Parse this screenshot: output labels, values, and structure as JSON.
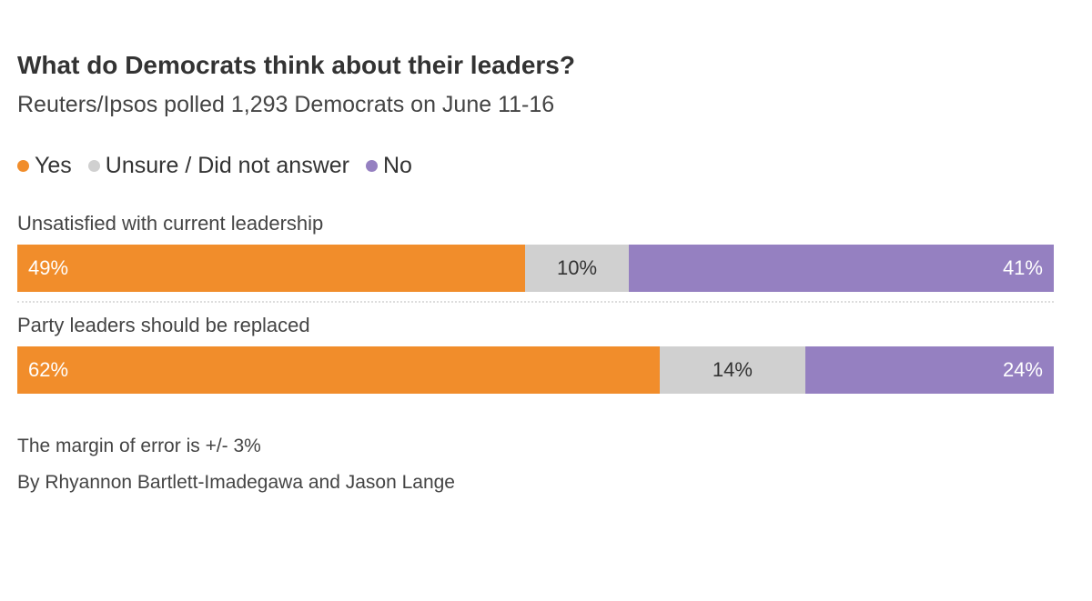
{
  "title": "What do Democrats think about their leaders?",
  "subtitle": "Reuters/Ipsos polled 1,293 Democrats on June 11-16",
  "legend": [
    {
      "label": "Yes",
      "color": "#F18D2B"
    },
    {
      "label": "Unsure / Did not answer",
      "color": "#D0D0D0"
    },
    {
      "label": "No",
      "color": "#9580C1"
    }
  ],
  "chart_data": {
    "type": "bar",
    "orientation": "horizontal-stacked-100",
    "title": "What do Democrats think about their leaders?",
    "categories": [
      "Unsatisfied with current leadership",
      "Party leaders should be replaced"
    ],
    "series": [
      {
        "name": "Yes",
        "color": "#F18D2B",
        "values": [
          49,
          62
        ],
        "labels": [
          "49%",
          "62%"
        ]
      },
      {
        "name": "Unsure / Did not answer",
        "color": "#D0D0D0",
        "values": [
          10,
          14
        ],
        "labels": [
          "10%",
          "14%"
        ]
      },
      {
        "name": "No",
        "color": "#9580C1",
        "values": [
          41,
          24
        ],
        "labels": [
          "41%",
          "24%"
        ]
      }
    ],
    "xlim": [
      0,
      100
    ],
    "legend": "top-left"
  },
  "notes": [
    "The margin of error is +/- 3%",
    "By Rhyannon Bartlett-Imadegawa and Jason Lange"
  ]
}
